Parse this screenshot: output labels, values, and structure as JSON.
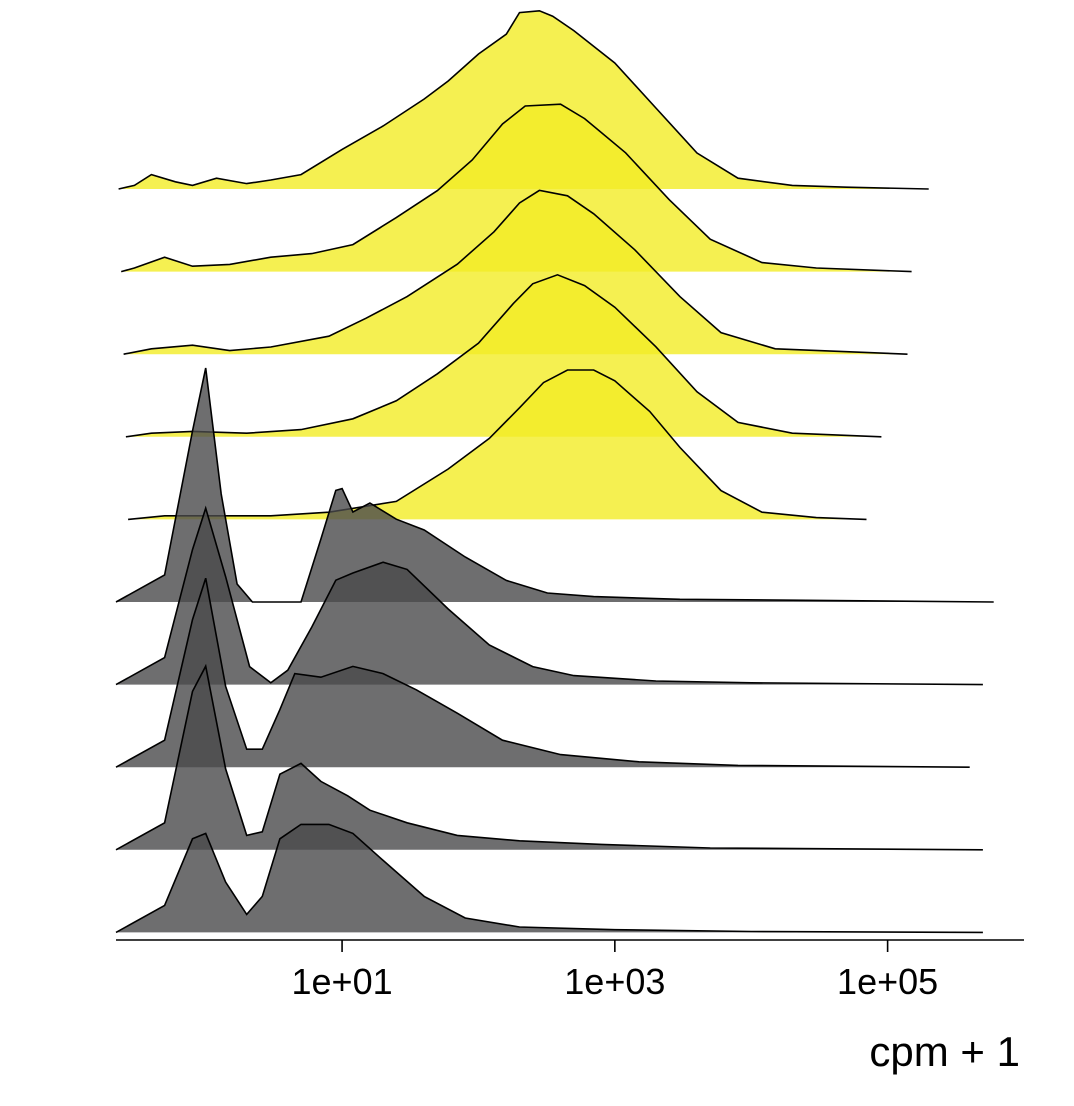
{
  "chart_data": {
    "type": "ridgeline",
    "x_scale": "log10",
    "xlabel": "cpm + 1",
    "xlim": [
      0.22,
      1000000
    ],
    "x_ticks": [
      {
        "value": 10,
        "label": "1e+01"
      },
      {
        "value": 1000,
        "label": "1e+03"
      },
      {
        "value": 100000,
        "label": "1e+05"
      }
    ],
    "grid": false,
    "legend": "none",
    "colors": {
      "yellow_fill": "#f3ec26",
      "grey_fill": "#4a4a4b",
      "outline": "#000000"
    },
    "series": [
      {
        "color": "yellow",
        "x_range": [
          0.23,
          200000
        ],
        "density": [
          [
            0.23,
            0
          ],
          [
            0.3,
            0.02
          ],
          [
            0.4,
            0.08
          ],
          [
            0.6,
            0.04
          ],
          [
            0.8,
            0.02
          ],
          [
            1.2,
            0.06
          ],
          [
            2,
            0.03
          ],
          [
            3,
            0.05
          ],
          [
            5,
            0.08
          ],
          [
            10,
            0.22
          ],
          [
            20,
            0.35
          ],
          [
            40,
            0.5
          ],
          [
            60,
            0.6
          ],
          [
            100,
            0.75
          ],
          [
            160,
            0.86
          ],
          [
            200,
            0.98
          ],
          [
            280,
            0.99
          ],
          [
            350,
            0.96
          ],
          [
            500,
            0.88
          ],
          [
            1000,
            0.7
          ],
          [
            2000,
            0.45
          ],
          [
            4000,
            0.2
          ],
          [
            8000,
            0.06
          ],
          [
            20000,
            0.02
          ],
          [
            50000,
            0.01
          ],
          [
            200000,
            0
          ]
        ]
      },
      {
        "color": "yellow",
        "x_range": [
          0.24,
          150000
        ],
        "density": [
          [
            0.24,
            0
          ],
          [
            0.3,
            0.02
          ],
          [
            0.5,
            0.08
          ],
          [
            0.8,
            0.03
          ],
          [
            1.5,
            0.04
          ],
          [
            3,
            0.08
          ],
          [
            6,
            0.1
          ],
          [
            12,
            0.15
          ],
          [
            25,
            0.3
          ],
          [
            50,
            0.45
          ],
          [
            90,
            0.62
          ],
          [
            150,
            0.82
          ],
          [
            220,
            0.92
          ],
          [
            400,
            0.93
          ],
          [
            600,
            0.85
          ],
          [
            1200,
            0.66
          ],
          [
            2500,
            0.4
          ],
          [
            5000,
            0.18
          ],
          [
            12000,
            0.05
          ],
          [
            30000,
            0.02
          ],
          [
            150000,
            0
          ]
        ]
      },
      {
        "color": "yellow",
        "x_range": [
          0.25,
          140000
        ],
        "density": [
          [
            0.25,
            0
          ],
          [
            0.4,
            0.03
          ],
          [
            0.8,
            0.05
          ],
          [
            1.5,
            0.02
          ],
          [
            3,
            0.04
          ],
          [
            8,
            0.1
          ],
          [
            15,
            0.2
          ],
          [
            30,
            0.32
          ],
          [
            70,
            0.5
          ],
          [
            130,
            0.68
          ],
          [
            200,
            0.84
          ],
          [
            280,
            0.91
          ],
          [
            450,
            0.88
          ],
          [
            700,
            0.78
          ],
          [
            1400,
            0.58
          ],
          [
            3000,
            0.32
          ],
          [
            6000,
            0.12
          ],
          [
            15000,
            0.03
          ],
          [
            140000,
            0
          ]
        ]
      },
      {
        "color": "yellow",
        "x_range": [
          0.26,
          90000
        ],
        "density": [
          [
            0.26,
            0
          ],
          [
            0.4,
            0.02
          ],
          [
            0.8,
            0.03
          ],
          [
            2,
            0.02
          ],
          [
            5,
            0.04
          ],
          [
            12,
            0.1
          ],
          [
            25,
            0.2
          ],
          [
            50,
            0.35
          ],
          [
            100,
            0.52
          ],
          [
            180,
            0.74
          ],
          [
            250,
            0.85
          ],
          [
            380,
            0.9
          ],
          [
            600,
            0.84
          ],
          [
            1000,
            0.72
          ],
          [
            2000,
            0.5
          ],
          [
            4000,
            0.25
          ],
          [
            8000,
            0.08
          ],
          [
            20000,
            0.02
          ],
          [
            90000,
            0
          ]
        ]
      },
      {
        "color": "yellow",
        "x_range": [
          0.27,
          70000
        ],
        "density": [
          [
            0.27,
            0
          ],
          [
            0.5,
            0.02
          ],
          [
            1,
            0.02
          ],
          [
            3,
            0.02
          ],
          [
            8,
            0.04
          ],
          [
            25,
            0.1
          ],
          [
            60,
            0.28
          ],
          [
            120,
            0.45
          ],
          [
            200,
            0.62
          ],
          [
            300,
            0.76
          ],
          [
            450,
            0.83
          ],
          [
            700,
            0.83
          ],
          [
            1000,
            0.77
          ],
          [
            1800,
            0.6
          ],
          [
            3000,
            0.4
          ],
          [
            6000,
            0.16
          ],
          [
            12000,
            0.04
          ],
          [
            30000,
            0.01
          ],
          [
            70000,
            0
          ]
        ]
      },
      {
        "color": "grey",
        "x_range": [
          0.22,
          600000
        ],
        "density": [
          [
            0.22,
            0
          ],
          [
            0.5,
            0.15
          ],
          [
            0.8,
            0.95
          ],
          [
            1,
            1.3
          ],
          [
            1.3,
            0.6
          ],
          [
            1.7,
            0.1
          ],
          [
            2.2,
            0
          ],
          [
            5,
            0
          ],
          [
            7,
            0.35
          ],
          [
            9,
            0.62
          ],
          [
            10,
            0.63
          ],
          [
            12,
            0.5
          ],
          [
            16,
            0.55
          ],
          [
            25,
            0.46
          ],
          [
            40,
            0.4
          ],
          [
            80,
            0.25
          ],
          [
            160,
            0.12
          ],
          [
            320,
            0.05
          ],
          [
            700,
            0.03
          ],
          [
            3000,
            0.015
          ],
          [
            20000,
            0.01
          ],
          [
            600000,
            0
          ]
        ]
      },
      {
        "color": "grey",
        "x_range": [
          0.22,
          500000
        ],
        "density": [
          [
            0.22,
            0
          ],
          [
            0.5,
            0.15
          ],
          [
            0.8,
            0.75
          ],
          [
            1,
            0.98
          ],
          [
            1.4,
            0.6
          ],
          [
            2.1,
            0.1
          ],
          [
            3,
            0.01
          ],
          [
            4,
            0.08
          ],
          [
            6,
            0.32
          ],
          [
            9,
            0.58
          ],
          [
            12,
            0.62
          ],
          [
            20,
            0.68
          ],
          [
            30,
            0.64
          ],
          [
            60,
            0.42
          ],
          [
            120,
            0.22
          ],
          [
            250,
            0.1
          ],
          [
            500,
            0.05
          ],
          [
            2000,
            0.02
          ],
          [
            10000,
            0.01
          ],
          [
            500000,
            0
          ]
        ]
      },
      {
        "color": "grey",
        "x_range": [
          0.22,
          400000
        ],
        "density": [
          [
            0.22,
            0
          ],
          [
            0.5,
            0.15
          ],
          [
            0.8,
            0.82
          ],
          [
            1,
            1.05
          ],
          [
            1.4,
            0.45
          ],
          [
            2,
            0.1
          ],
          [
            2.6,
            0.1
          ],
          [
            3.5,
            0.32
          ],
          [
            4.5,
            0.52
          ],
          [
            7,
            0.5
          ],
          [
            12,
            0.56
          ],
          [
            20,
            0.52
          ],
          [
            35,
            0.43
          ],
          [
            70,
            0.3
          ],
          [
            150,
            0.15
          ],
          [
            400,
            0.07
          ],
          [
            1500,
            0.03
          ],
          [
            8000,
            0.01
          ],
          [
            400000,
            0
          ]
        ]
      },
      {
        "color": "grey",
        "x_range": [
          0.22,
          500000
        ],
        "density": [
          [
            0.22,
            0
          ],
          [
            0.5,
            0.15
          ],
          [
            0.8,
            0.88
          ],
          [
            1,
            1.02
          ],
          [
            1.4,
            0.45
          ],
          [
            2,
            0.08
          ],
          [
            2.6,
            0.1
          ],
          [
            3.5,
            0.42
          ],
          [
            5,
            0.48
          ],
          [
            7,
            0.38
          ],
          [
            11,
            0.3
          ],
          [
            16,
            0.22
          ],
          [
            30,
            0.15
          ],
          [
            70,
            0.08
          ],
          [
            200,
            0.05
          ],
          [
            800,
            0.03
          ],
          [
            5000,
            0.01
          ],
          [
            500000,
            0
          ]
        ]
      },
      {
        "color": "grey",
        "x_range": [
          0.22,
          500000
        ],
        "density": [
          [
            0.22,
            0
          ],
          [
            0.5,
            0.15
          ],
          [
            0.8,
            0.52
          ],
          [
            1,
            0.55
          ],
          [
            1.4,
            0.28
          ],
          [
            2,
            0.1
          ],
          [
            2.6,
            0.2
          ],
          [
            3.5,
            0.52
          ],
          [
            5,
            0.6
          ],
          [
            8,
            0.6
          ],
          [
            12,
            0.55
          ],
          [
            20,
            0.4
          ],
          [
            40,
            0.2
          ],
          [
            80,
            0.08
          ],
          [
            200,
            0.03
          ],
          [
            1000,
            0.015
          ],
          [
            10000,
            0.005
          ],
          [
            500000,
            0
          ]
        ]
      }
    ]
  }
}
